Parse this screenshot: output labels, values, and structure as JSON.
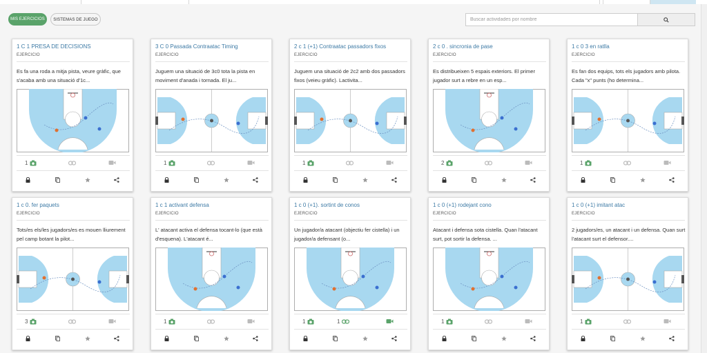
{
  "filters": {
    "my_exercises": "MIS EJERCICIOS",
    "game_systems": "SISTEMAS DE JUEGO"
  },
  "search": {
    "placeholder": "Buscar actividades por nombre",
    "icon": "search-icon"
  },
  "colors": {
    "accent_green": "#5aa36a",
    "title_blue": "#3d7aa5",
    "court_blue": "#a8d8f0"
  },
  "cards": [
    {
      "title": "1 C 1 PRESA DE DECISIONS",
      "type": "EJERCICIO",
      "desc": "Es fa una roda a mitja pista, veure gràfic, que s'acaba amb una situació d'1c...",
      "court": "half",
      "photos": "1",
      "links": "",
      "videos": ""
    },
    {
      "title": "3 C 0 Passada Contraatac Timing",
      "type": "EJERCICIO",
      "desc": "Juguem una situació de 3c0 tota la pista en moviment d'anada i tornada. El ju...",
      "court": "full",
      "photos": "1",
      "links": "",
      "videos": ""
    },
    {
      "title": "2 c 1 (+1) Contraatac passadors fixos",
      "type": "EJERCICIO",
      "desc": "Juguem una situació de 2c2 amb dos passadors fixos (veieu gràfic). Lactivita...",
      "court": "full",
      "photos": "1",
      "links": "",
      "videos": ""
    },
    {
      "title": "2 c 0 . sincronia de pase",
      "type": "EJERCICIO",
      "desc": "Es distribueixen 5 espais exteriors. El primer jugador surt a rebre en un esp...",
      "court": "half",
      "photos": "2",
      "links": "",
      "videos": ""
    },
    {
      "title": "1 c 0 3 en ratlla",
      "type": "EJERCICIO",
      "desc": "Es fan dos equips, tots els jugadors amb pilota. Cada \"x\" punts (ho determina...",
      "court": "full",
      "photos": "1",
      "links": "",
      "videos": ""
    },
    {
      "title": "1 c 0. fer paquets",
      "type": "EJERCICIO",
      "desc": "Tots/es els/les jugadors/es es mouen lliurement pel camp botant la pilot...",
      "court": "full",
      "photos": "3",
      "links": "",
      "videos": ""
    },
    {
      "title": "1 c 1 activant defensa",
      "type": "EJERCICIO",
      "desc": "L' atacant activa el defensa tocant-lo (que està d'esquena). L'atacant é...",
      "court": "half",
      "photos": "1",
      "links": "",
      "videos": ""
    },
    {
      "title": "1 c 0 (+1). sortint de conos",
      "type": "EJERCICIO",
      "desc": "Un jugador/a atacant (objectiu fer cistella) i un jugador/a defensant (o...",
      "court": "half",
      "photos": "1",
      "links": "1",
      "videos": ""
    },
    {
      "title": "1 c 0 (+1) rodejant cono",
      "type": "EJERCICIO",
      "desc": "Atacant i defensa sota cistella. Quan l'atacant surt, pot sortir la defensa. ...",
      "court": "half",
      "photos": "1",
      "links": "",
      "videos": ""
    },
    {
      "title": "1 c 0 (+1) imitant atac",
      "type": "EJERCICIO",
      "desc": "2 jugadors/es, un atacant i un defensa. Quan surt l'atacant surt el defensor....",
      "court": "full",
      "photos": "1",
      "links": "",
      "videos": ""
    }
  ]
}
